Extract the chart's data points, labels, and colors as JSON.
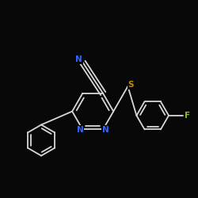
{
  "background_color": "#080808",
  "bond_color": "#d8d8d8",
  "atom_colors": {
    "N": "#3366ff",
    "S": "#cc8800",
    "F": "#88bb33",
    "C": "#d8d8d8"
  },
  "figsize": [
    2.5,
    2.5
  ],
  "dpi": 100,
  "lw": 1.3,
  "fontsize": 7.5
}
